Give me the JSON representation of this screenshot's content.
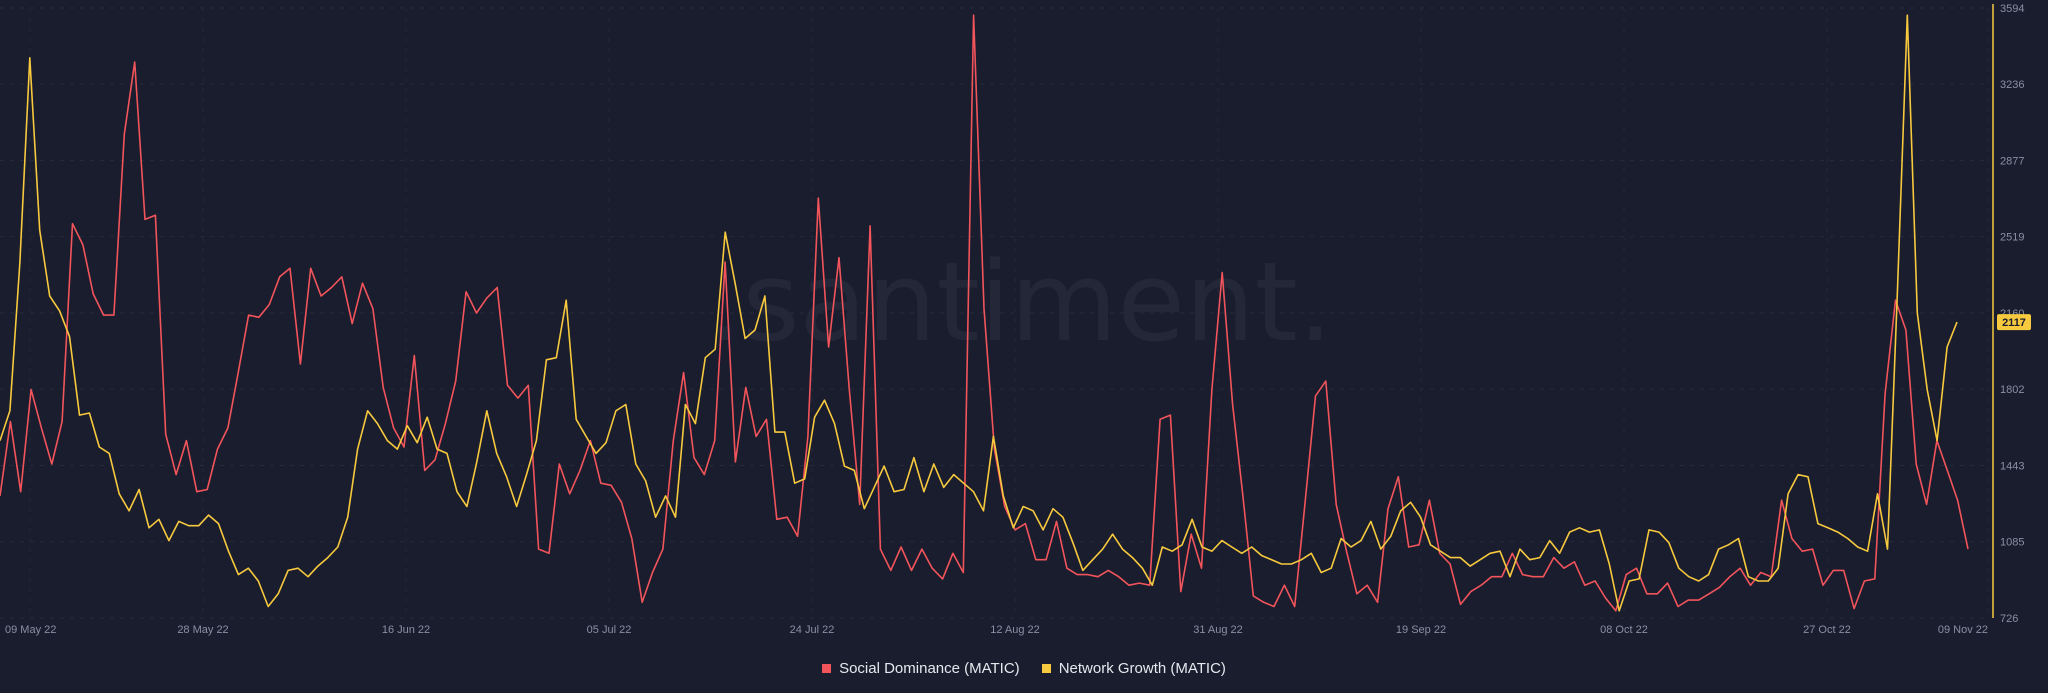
{
  "chart_data": {
    "type": "line",
    "watermark": ".santiment.",
    "x_ticks": [
      "09 May 22",
      "28 May 22",
      "16 Jun 22",
      "05 Jul 22",
      "24 Jul 22",
      "12 Aug 22",
      "31 Aug 22",
      "19 Sep 22",
      "08 Oct 22",
      "27 Oct 22",
      "09 Nov 22"
    ],
    "y_ticks_right": [
      "726",
      "1085",
      "1443",
      "1802",
      "2160",
      "2519",
      "2877",
      "3236",
      "3594"
    ],
    "ylim": [
      726,
      3594
    ],
    "legend_position": "bottom-center",
    "last_value_badge": "2117",
    "series": [
      {
        "name": "Social Dominance (MATIC)",
        "color": "#f2545b",
        "values": [
          1300,
          1650,
          1320,
          1800,
          1620,
          1450,
          1650,
          2580,
          2480,
          2250,
          2150,
          2150,
          3000,
          3340,
          2600,
          2620,
          1590,
          1400,
          1560,
          1320,
          1330,
          1520,
          1620,
          1880,
          2150,
          2140,
          2200,
          2330,
          2370,
          1920,
          2370,
          2240,
          2280,
          2330,
          2110,
          2300,
          2180,
          1810,
          1620,
          1530,
          1960,
          1420,
          1470,
          1640,
          1840,
          2260,
          2160,
          2230,
          2280,
          1820,
          1760,
          1820,
          1050,
          1030,
          1450,
          1310,
          1420,
          1560,
          1360,
          1350,
          1270,
          1100,
          800,
          940,
          1050,
          1560,
          1880,
          1480,
          1400,
          1560,
          2400,
          1460,
          1810,
          1580,
          1660,
          1190,
          1200,
          1110,
          1580,
          2700,
          2000,
          2420,
          1800,
          1260,
          2570,
          1050,
          950,
          1060,
          950,
          1050,
          960,
          910,
          1030,
          940,
          3560,
          2180,
          1520,
          1250,
          1140,
          1170,
          1000,
          1000,
          1180,
          960,
          930,
          930,
          920,
          950,
          920,
          880,
          890,
          880,
          1660,
          1680,
          850,
          1120,
          960,
          1800,
          2350,
          1730,
          1300,
          830,
          800,
          780,
          880,
          780,
          1270,
          1770,
          1840,
          1260,
          1040,
          840,
          880,
          800,
          1240,
          1390,
          1060,
          1070,
          1280,
          1030,
          980,
          790,
          850,
          880,
          920,
          920,
          1030,
          930,
          920,
          920,
          1010,
          960,
          990,
          880,
          900,
          820,
          760,
          930,
          960,
          840,
          840,
          890,
          780,
          810,
          810,
          840,
          870,
          920,
          960,
          880,
          940,
          920,
          1280,
          1100,
          1040,
          1050,
          880,
          950,
          950,
          770,
          900,
          910,
          1780,
          2220,
          2080,
          1450,
          1260,
          1560,
          1420,
          1280,
          1050
        ]
      },
      {
        "name": "Network Growth (MATIC)",
        "color": "#f7c93e",
        "values": [
          1560,
          1700,
          2400,
          3360,
          2550,
          2240,
          2170,
          2050,
          1680,
          1690,
          1530,
          1500,
          1310,
          1230,
          1330,
          1150,
          1190,
          1090,
          1180,
          1160,
          1160,
          1210,
          1170,
          1040,
          930,
          960,
          900,
          780,
          840,
          950,
          960,
          920,
          970,
          1010,
          1060,
          1200,
          1520,
          1700,
          1640,
          1560,
          1520,
          1630,
          1550,
          1670,
          1520,
          1500,
          1320,
          1250,
          1460,
          1700,
          1500,
          1390,
          1250,
          1400,
          1560,
          1940,
          1950,
          2220,
          1660,
          1580,
          1500,
          1550,
          1700,
          1730,
          1450,
          1370,
          1200,
          1300,
          1200,
          1730,
          1640,
          1950,
          1990,
          2540,
          2300,
          2040,
          2080,
          2240,
          1600,
          1600,
          1360,
          1380,
          1670,
          1750,
          1640,
          1440,
          1420,
          1240,
          1340,
          1440,
          1320,
          1330,
          1480,
          1320,
          1450,
          1340,
          1400,
          1360,
          1320,
          1230,
          1580,
          1300,
          1150,
          1250,
          1230,
          1140,
          1240,
          1200,
          1080,
          950,
          1000,
          1050,
          1120,
          1050,
          1010,
          960,
          880,
          1060,
          1040,
          1070,
          1190,
          1060,
          1040,
          1090,
          1060,
          1030,
          1060,
          1020,
          1000,
          980,
          980,
          1000,
          1030,
          940,
          960,
          1100,
          1060,
          1090,
          1180,
          1050,
          1110,
          1230,
          1270,
          1200,
          1070,
          1040,
          1010,
          1010,
          970,
          1000,
          1030,
          1040,
          920,
          1050,
          1000,
          1010,
          1090,
          1030,
          1130,
          1150,
          1130,
          1140,
          980,
          760,
          900,
          910,
          1140,
          1130,
          1080,
          960,
          920,
          900,
          930,
          1050,
          1070,
          1100,
          920,
          900,
          900,
          960,
          1310,
          1400,
          1390,
          1170,
          1150,
          1130,
          1100,
          1060,
          1040,
          1310,
          1050,
          2260,
          3560,
          2160,
          1800,
          1560,
          2000,
          2117
        ]
      }
    ]
  }
}
